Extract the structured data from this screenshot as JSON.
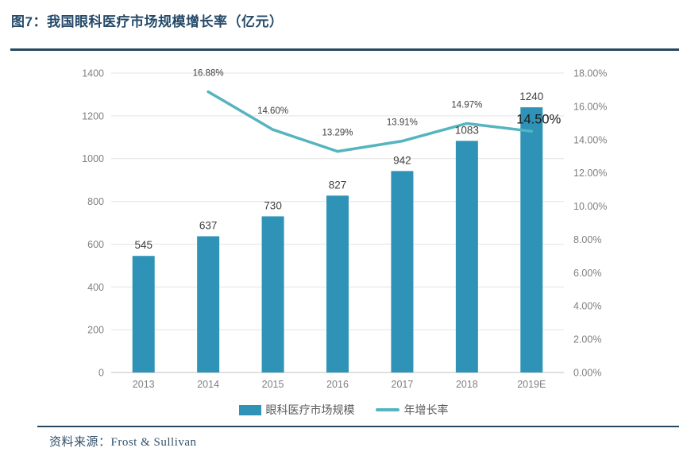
{
  "figure": {
    "title": "图7：我国眼科医疗市场规模增长率（亿元）",
    "source": "资料来源：Frost & Sullivan"
  },
  "legend": {
    "bar_label": "眼科医疗市场规模",
    "line_label": "年增长率"
  },
  "colors": {
    "bar": "#2f93b8",
    "line": "#55b4bf",
    "title": "#254a69",
    "rule": "#27485e",
    "axis_label": "#7f7f7f",
    "value_label": "#3f3f3f",
    "percent_label": "#404040",
    "emphasis_label": "#1a1a1a",
    "gridline": "#e4e4e4",
    "axis_line": "#bfbfbf",
    "legend_text": "#595959",
    "source_text": "#33516b"
  },
  "chart_data": {
    "type": "bar",
    "subtype": "bar-line-combo",
    "title": "图7：我国眼科医疗市场规模增长率（亿元）",
    "categories": [
      "2013",
      "2014",
      "2015",
      "2016",
      "2017",
      "2018",
      "2019E"
    ],
    "series": [
      {
        "name": "眼科医疗市场规模",
        "type": "bar",
        "axis": "left",
        "values": [
          545,
          637,
          730,
          827,
          942,
          1083,
          1240
        ],
        "labels": [
          "545",
          "637",
          "730",
          "827",
          "942",
          "1083",
          "1240"
        ]
      },
      {
        "name": "年增长率",
        "type": "line",
        "axis": "right",
        "values": [
          null,
          16.88,
          14.6,
          13.29,
          13.91,
          14.97,
          14.5
        ],
        "labels": [
          null,
          "16.88%",
          "14.60%",
          "13.29%",
          "13.91%",
          "14.97%",
          "14.50%"
        ],
        "emphasized_index": 6
      }
    ],
    "left_axis": {
      "min": 0,
      "max": 1400,
      "step": 200,
      "ticks": [
        "0",
        "200",
        "400",
        "600",
        "800",
        "1000",
        "1200",
        "1400"
      ]
    },
    "right_axis": {
      "min": 0,
      "max": 18,
      "step": 2,
      "ticks": [
        "0.00%",
        "2.00%",
        "4.00%",
        "6.00%",
        "8.00%",
        "10.00%",
        "12.00%",
        "14.00%",
        "16.00%",
        "18.00%"
      ]
    },
    "grid": "horizontal",
    "legend_position": "bottom"
  }
}
